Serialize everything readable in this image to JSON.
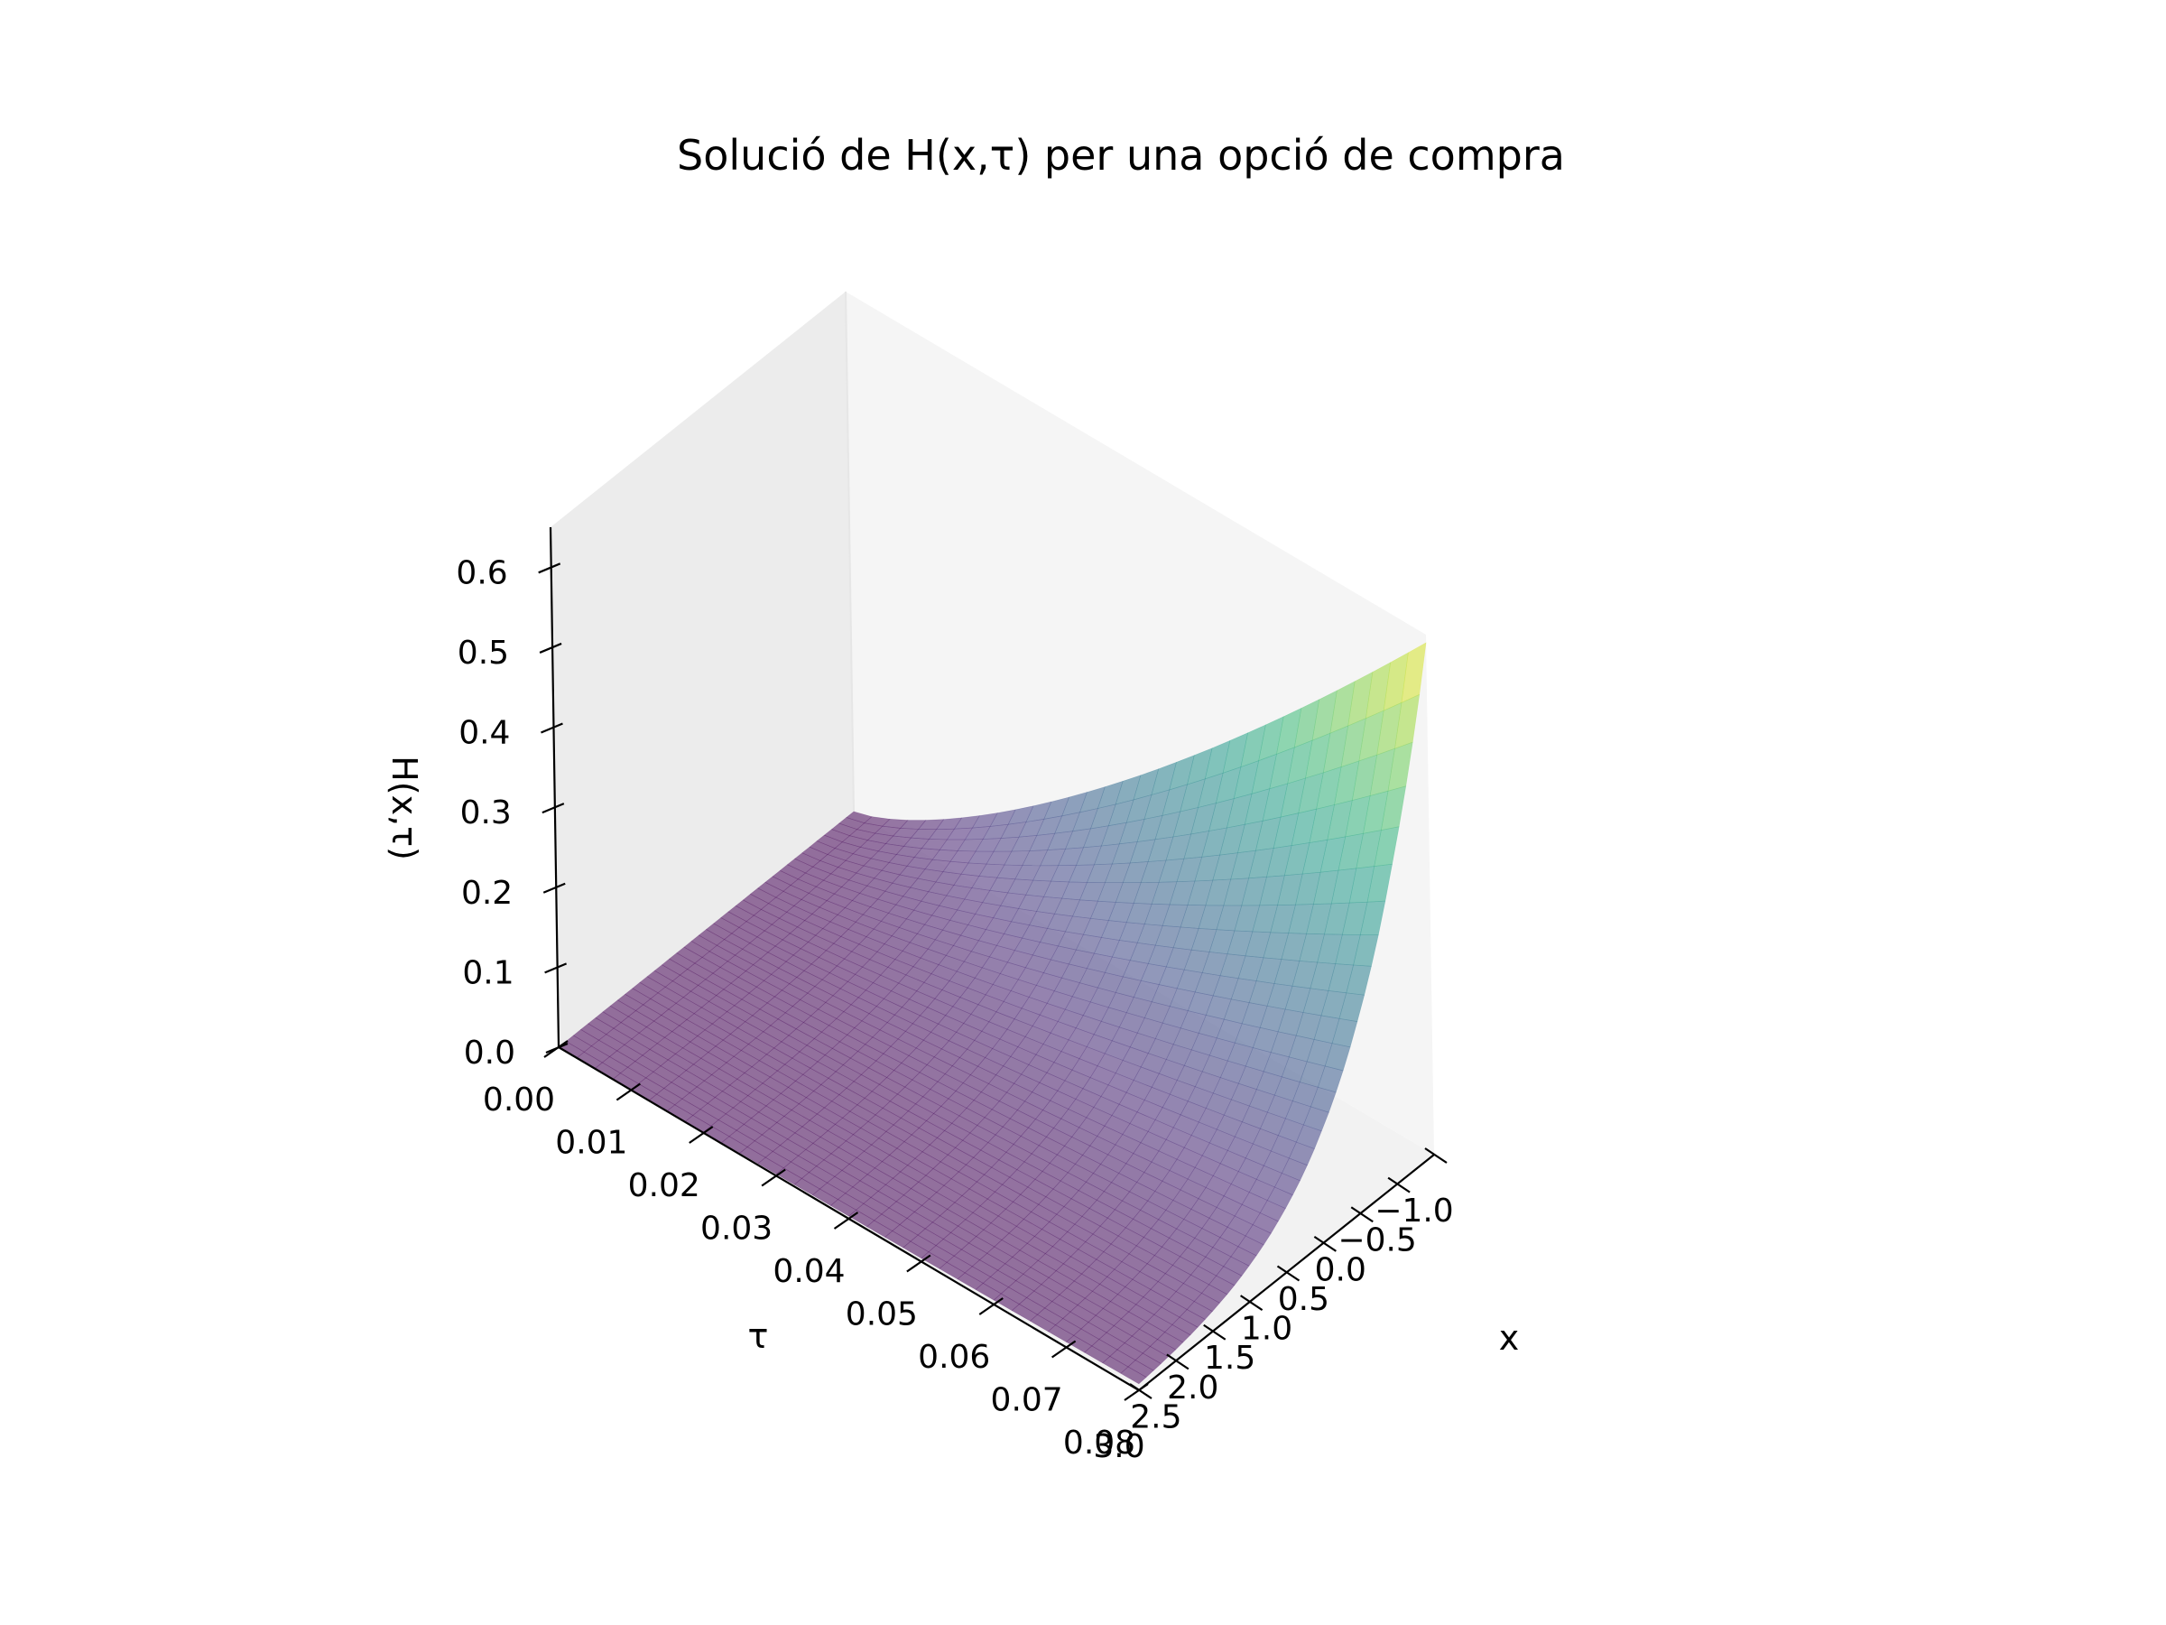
{
  "chart_data": {
    "type": "surface",
    "title": "Solució de H(x,τ) per una opció de compra",
    "xlabel": "x",
    "ylabel": "τ",
    "zlabel": "H(x,τ)",
    "x_range": [
      -1.0,
      3.0
    ],
    "tau_range": [
      0.0,
      0.08
    ],
    "z_range": [
      0.0,
      0.65
    ],
    "x_ticks": [
      "−1.0",
      "−0.5",
      "0.0",
      "0.5",
      "1.0",
      "1.5",
      "2.0",
      "2.5",
      "3.0"
    ],
    "tau_ticks": [
      "0.00",
      "0.01",
      "0.02",
      "0.03",
      "0.04",
      "0.05",
      "0.06",
      "0.07",
      "0.08"
    ],
    "z_ticks": [
      "0.0",
      "0.1",
      "0.2",
      "0.3",
      "0.4",
      "0.5",
      "0.6"
    ],
    "colormap": "viridis",
    "alpha": 0.55,
    "surface_profile": {
      "x": [
        -1.0,
        -0.5,
        0.0,
        0.5,
        1.0,
        1.5,
        2.0,
        2.5,
        3.0
      ],
      "h_at_tau_max": [
        0.64,
        0.4,
        0.24,
        0.14,
        0.08,
        0.045,
        0.025,
        0.014,
        0.008
      ],
      "h_at_tau_zero": 0.0
    }
  }
}
